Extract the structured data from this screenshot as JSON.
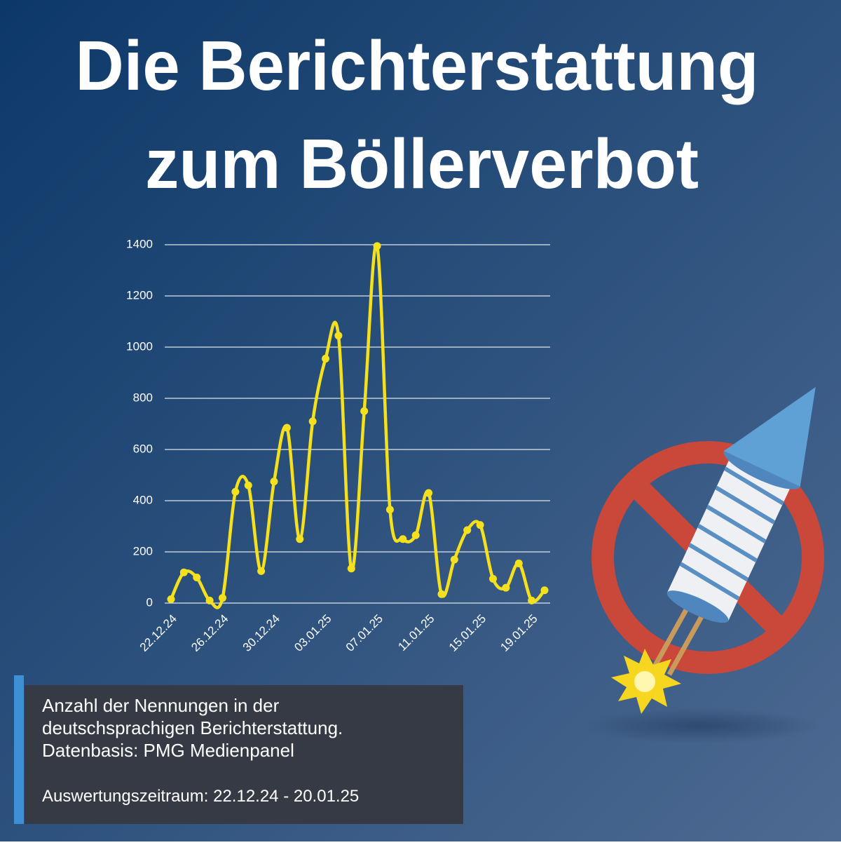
{
  "chart_data": {
    "type": "line",
    "title": [
      "Die Berichterstattung",
      "zum Böllerverbot"
    ],
    "categories": [
      "22.12.24",
      null,
      null,
      null,
      "26.12.24",
      null,
      null,
      null,
      "30.12.24",
      null,
      null,
      null,
      "03.01.25",
      null,
      null,
      null,
      "07.01.25",
      null,
      null,
      null,
      "11.01.25",
      null,
      null,
      null,
      "15.01.25",
      null,
      null,
      null,
      "19.01.25",
      null
    ],
    "series": [
      {
        "color": "#f4e01c",
        "values": [
          15,
          120,
          100,
          10,
          20,
          435,
          460,
          125,
          475,
          685,
          250,
          710,
          955,
          1045,
          135,
          750,
          1395,
          365,
          250,
          265,
          430,
          35,
          170,
          285,
          305,
          95,
          60,
          155,
          10,
          50
        ]
      }
    ],
    "ylim": [
      0,
      1400
    ],
    "yticks": [
      0,
      200,
      400,
      600,
      800,
      1000,
      1200,
      1400
    ],
    "grid": true,
    "notes": [
      "Anzahl der Nennungen in der",
      "deutschsprachigen Berichterstattung.",
      "Datenbasis: PMG Medienpanel"
    ],
    "period": "Auswertungszeitraum: 22.12.24 - 20.01.25"
  }
}
